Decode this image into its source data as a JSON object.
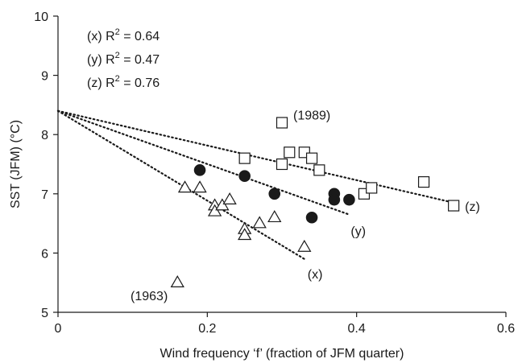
{
  "chart_data": {
    "type": "scatter",
    "xlabel": "Wind frequency ‘f’ (fraction of JFM quarter)",
    "ylabel": "SST (JFM) (°C)",
    "xlim": [
      0,
      0.6
    ],
    "ylim": [
      5,
      10
    ],
    "x_ticks": [
      "0",
      "0.2",
      "0.4",
      "0.6"
    ],
    "y_ticks": [
      "5",
      "6",
      "7",
      "8",
      "9",
      "10"
    ],
    "grid": false,
    "legend_entries": [
      {
        "label": "(x) R",
        "sup": "2",
        "value": " = 0.64"
      },
      {
        "label": "(y) R",
        "sup": "2",
        "value": " = 0.47"
      },
      {
        "label": "(z) R",
        "sup": "2",
        "value": " = 0.76"
      }
    ],
    "series": [
      {
        "marker": "open-triangle",
        "fit_label": "(x)",
        "points": [
          {
            "x": 0.16,
            "y": 5.5
          },
          {
            "x": 0.17,
            "y": 7.1
          },
          {
            "x": 0.19,
            "y": 7.1
          },
          {
            "x": 0.21,
            "y": 6.8
          },
          {
            "x": 0.21,
            "y": 6.7
          },
          {
            "x": 0.22,
            "y": 6.8
          },
          {
            "x": 0.23,
            "y": 6.9
          },
          {
            "x": 0.25,
            "y": 6.4
          },
          {
            "x": 0.25,
            "y": 6.3
          },
          {
            "x": 0.27,
            "y": 6.5
          },
          {
            "x": 0.29,
            "y": 6.6
          },
          {
            "x": 0.33,
            "y": 6.1
          }
        ],
        "fit": {
          "x": [
            0,
            0.33
          ],
          "y": [
            8.4,
            5.9
          ]
        }
      },
      {
        "marker": "filled-circle",
        "fit_label": "(y)",
        "points": [
          {
            "x": 0.19,
            "y": 7.4
          },
          {
            "x": 0.25,
            "y": 7.3
          },
          {
            "x": 0.29,
            "y": 7.0
          },
          {
            "x": 0.34,
            "y": 6.6
          },
          {
            "x": 0.37,
            "y": 7.0
          },
          {
            "x": 0.37,
            "y": 6.9
          },
          {
            "x": 0.39,
            "y": 6.9
          }
        ],
        "fit": {
          "x": [
            0,
            0.39
          ],
          "y": [
            8.4,
            6.65
          ]
        }
      },
      {
        "marker": "open-square",
        "fit_label": "(z)",
        "points": [
          {
            "x": 0.25,
            "y": 7.6
          },
          {
            "x": 0.3,
            "y": 8.2
          },
          {
            "x": 0.3,
            "y": 7.5
          },
          {
            "x": 0.31,
            "y": 7.7
          },
          {
            "x": 0.33,
            "y": 7.7
          },
          {
            "x": 0.34,
            "y": 7.6
          },
          {
            "x": 0.35,
            "y": 7.4
          },
          {
            "x": 0.41,
            "y": 7.0
          },
          {
            "x": 0.42,
            "y": 7.1
          },
          {
            "x": 0.49,
            "y": 7.2
          },
          {
            "x": 0.53,
            "y": 6.8
          }
        ],
        "fit": {
          "x": [
            0,
            0.53
          ],
          "y": [
            8.4,
            6.85
          ]
        }
      }
    ],
    "annotations": [
      {
        "text": "(1963)",
        "x": 0.16,
        "y": 5.5
      },
      {
        "text": "(1989)",
        "x": 0.3,
        "y": 8.2
      }
    ]
  }
}
